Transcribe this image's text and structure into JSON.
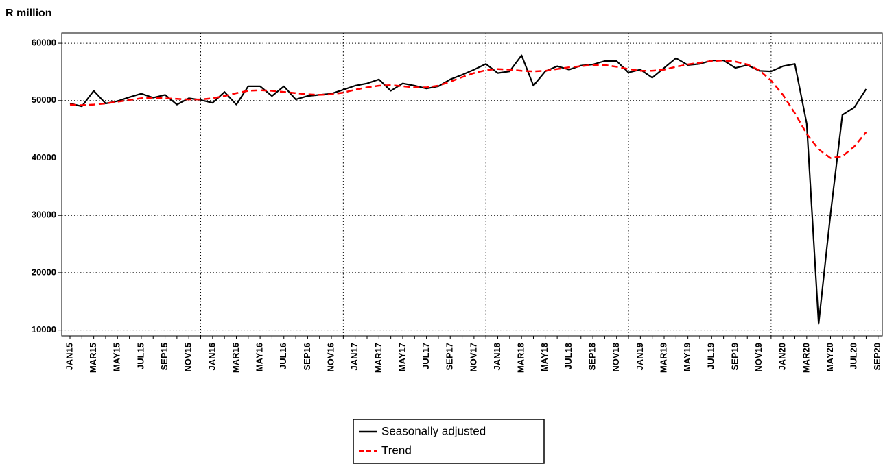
{
  "chart_data": {
    "type": "line",
    "y_label": "R million",
    "categories": [
      "JAN15",
      null,
      "MAR15",
      null,
      "MAY15",
      null,
      "JUL15",
      null,
      "SEP15",
      null,
      "NOV15",
      null,
      "JAN16",
      null,
      "MAR16",
      null,
      "MAY16",
      null,
      "JUL16",
      null,
      "SEP16",
      null,
      "NOV16",
      null,
      "JAN17",
      null,
      "MAR17",
      null,
      "MAY17",
      null,
      "JUL17",
      null,
      "SEP17",
      null,
      "NOV17",
      null,
      "JAN18",
      null,
      "MAR18",
      null,
      "MAY18",
      null,
      "JUL18",
      null,
      "SEP18",
      null,
      "NOV18",
      null,
      "JAN19",
      null,
      "MAR19",
      null,
      "MAY19",
      null,
      "JUL19",
      null,
      "SEP19",
      null,
      "NOV19",
      null,
      "JAN20",
      null,
      "MAR20",
      null,
      "MAY20",
      null,
      "JUL20",
      null,
      "SEP20"
    ],
    "series": [
      {
        "name": "Seasonally adjusted",
        "color": "#000000",
        "dash": "solid",
        "values": [
          49500,
          49000,
          51700,
          49500,
          49900,
          50600,
          51200,
          50500,
          51000,
          49300,
          50400,
          50100,
          49600,
          51500,
          49300,
          52500,
          52500,
          50800,
          52500,
          50200,
          50800,
          51000,
          51200,
          51900,
          52600,
          53000,
          53700,
          51700,
          53000,
          52600,
          52100,
          52500,
          53700,
          54500,
          55400,
          56400,
          54800,
          55100,
          57900,
          52600,
          55100,
          56000,
          55400,
          56100,
          56300,
          56900,
          56900,
          54900,
          55400,
          54000,
          55700,
          57400,
          56200,
          56400,
          57000,
          57000,
          55700,
          56200,
          55200,
          55100,
          56000,
          56400,
          46000,
          11100,
          30200,
          47500,
          48800,
          52000,
          null
        ]
      },
      {
        "name": "Trend",
        "color": "#ff0000",
        "dash": "dashed",
        "values": [
          49300,
          49200,
          49300,
          49500,
          49800,
          50100,
          50400,
          50500,
          50400,
          50300,
          50200,
          50200,
          50400,
          50800,
          51300,
          51700,
          51800,
          51700,
          51500,
          51300,
          51100,
          51000,
          51100,
          51400,
          51900,
          52300,
          52600,
          52700,
          52500,
          52300,
          52300,
          52600,
          53300,
          54100,
          54800,
          55300,
          55500,
          55400,
          55200,
          55100,
          55200,
          55500,
          55800,
          56000,
          56200,
          56200,
          55900,
          55500,
          55200,
          55200,
          55400,
          55900,
          56300,
          56600,
          56900,
          57000,
          56800,
          56300,
          55300,
          53500,
          51000,
          47800,
          44200,
          41500,
          40000,
          40300,
          42000,
          44500,
          null
        ]
      }
    ],
    "ylim": [
      9000,
      61800
    ],
    "yticks": [
      10000,
      20000,
      30000,
      40000,
      50000,
      60000
    ],
    "grid": true
  }
}
